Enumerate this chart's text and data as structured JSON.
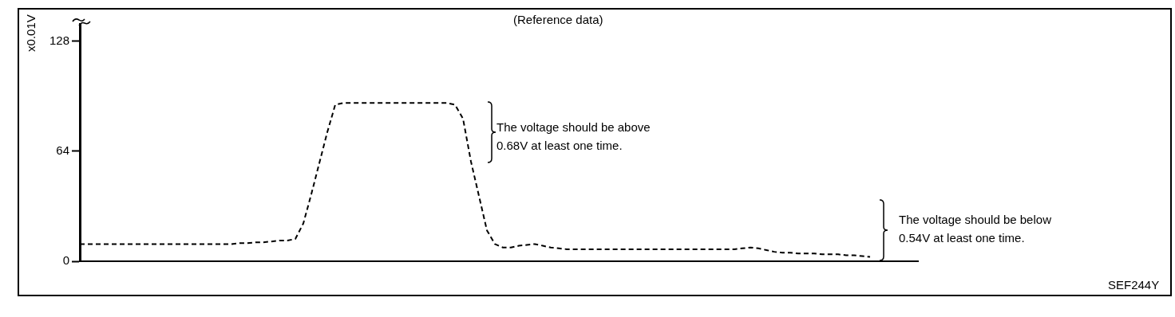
{
  "chart_data": {
    "type": "line",
    "title": "(Reference data)",
    "ylabel": "x0.01V",
    "categories": [
      null,
      null,
      null,
      null,
      null,
      null,
      null,
      null,
      null,
      null,
      null,
      null,
      null,
      null,
      null,
      null,
      null,
      null,
      null,
      null,
      null,
      null,
      null,
      null,
      null,
      null,
      null,
      null,
      null,
      null,
      null,
      null,
      null,
      null,
      null,
      null,
      null,
      null,
      null,
      null,
      null,
      null,
      null,
      null,
      null,
      null,
      null,
      null,
      null,
      null,
      null,
      null,
      null,
      null,
      null,
      null,
      null,
      null,
      null,
      null,
      null,
      null,
      null,
      null,
      null,
      null,
      null,
      null,
      null,
      null,
      null,
      null,
      null,
      null,
      null,
      null,
      null,
      null,
      null,
      null,
      null,
      null,
      null,
      null,
      null,
      null,
      null,
      null,
      null,
      null,
      null,
      null,
      null,
      null,
      null,
      null,
      null,
      null,
      null,
      null,
      null,
      null,
      null,
      null,
      null,
      null
    ],
    "series": [
      {
        "color": "#000000",
        "values": [
          10,
          10,
          10,
          10,
          10,
          10,
          10,
          10,
          10,
          10,
          10,
          10,
          10,
          10,
          10,
          10,
          10,
          10,
          10,
          10,
          10.5,
          10.5,
          11,
          11,
          11.5,
          12,
          12,
          13,
          22,
          39,
          57,
          75,
          91,
          92,
          92,
          92,
          92,
          92,
          92,
          92,
          92,
          92,
          92,
          92,
          92,
          92,
          92,
          91,
          83,
          58,
          38,
          18,
          10,
          8,
          8,
          9,
          9.5,
          10,
          9,
          8,
          7.5,
          7,
          7,
          7,
          7,
          7,
          7,
          7,
          7,
          7,
          7,
          7,
          7,
          7,
          7,
          7,
          7,
          7,
          7,
          7,
          7,
          7,
          7,
          7.5,
          8,
          7.5,
          6.5,
          5.5,
          5,
          5,
          4.5,
          4.5,
          4.5,
          4,
          4,
          4,
          3.5,
          3.5,
          3,
          2.5,
          null,
          null,
          null,
          null,
          null,
          null
        ]
      }
    ],
    "ylim": [
      0,
      138
    ],
    "yticks": [
      0,
      64,
      128
    ],
    "grid": false,
    "legend": false,
    "marker": "none",
    "line_style": "dashed",
    "tick_labels": "y",
    "annotations": [
      "The voltage should be above\n0.68V at least one time.",
      "The voltage should be below\n0.54V at least one time.",
      "SEF244Y"
    ]
  }
}
